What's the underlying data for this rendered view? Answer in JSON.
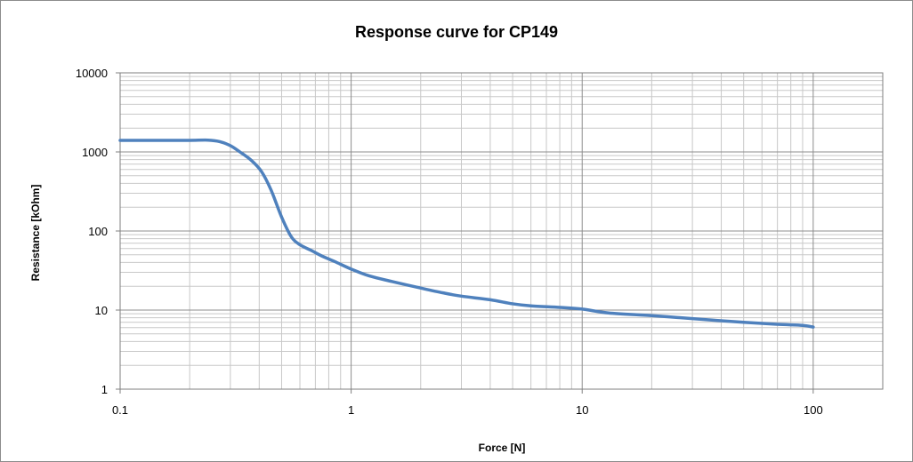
{
  "chart_data": {
    "type": "line",
    "title": "Response curve for CP149",
    "xlabel": "Force [N]",
    "ylabel": "Resistance  [kOhm]",
    "x_scale": "log",
    "y_scale": "log",
    "xlim": [
      0.1,
      200
    ],
    "ylim": [
      1,
      10000
    ],
    "x_ticks": [
      0.1,
      1,
      10,
      100
    ],
    "x_tick_labels": [
      "0.1",
      "1",
      "10",
      "100"
    ],
    "y_ticks": [
      1,
      10,
      100,
      1000,
      10000
    ],
    "y_tick_labels": [
      "1",
      "10",
      "100",
      "1000",
      "10000"
    ],
    "grid": true,
    "minor_grid": true,
    "legend": "none",
    "series": [
      {
        "color": "#4f81bd",
        "x": [
          0.1,
          0.15,
          0.2,
          0.24,
          0.27,
          0.3,
          0.33,
          0.37,
          0.41,
          0.45,
          0.5,
          0.55,
          0.6,
          0.67,
          0.75,
          0.85,
          1.0,
          1.2,
          1.5,
          2.0,
          2.5,
          3.0,
          4.0,
          5.0,
          6.0,
          8.0,
          10,
          13,
          20,
          30,
          50,
          70,
          90,
          100
        ],
        "y": [
          1400,
          1400,
          1400,
          1410,
          1350,
          1200,
          1000,
          780,
          560,
          330,
          150,
          85,
          67,
          57,
          48,
          41,
          33,
          27,
          23,
          19,
          16.5,
          15,
          13.5,
          12,
          11.3,
          10.8,
          10.3,
          9.2,
          8.5,
          7.8,
          7.0,
          6.6,
          6.4,
          6.1
        ]
      }
    ]
  }
}
